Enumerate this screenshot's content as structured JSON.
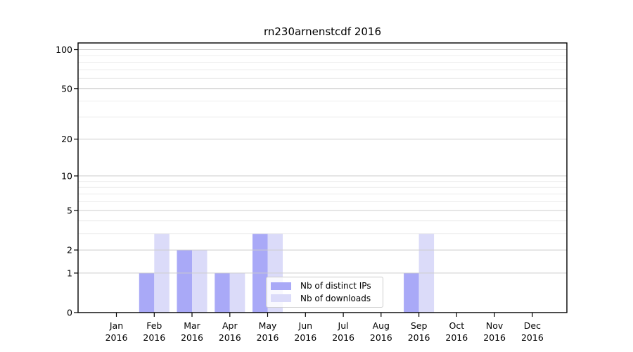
{
  "title": "rn230arnenstcdf 2016",
  "colors": {
    "distinct_ips_bar": "#a9a9f7",
    "downloads_bar": "#dbdbf9",
    "grid_major": "#cccccc",
    "grid_minor": "#e8e8e8",
    "axis": "#000000",
    "background": "#ffffff",
    "legend_border": "#cccccc"
  },
  "chart_data": {
    "type": "bar",
    "title": "rn230arnenstcdf 2016",
    "categories": [
      "Jan 2016",
      "Feb 2016",
      "Mar 2016",
      "Apr 2016",
      "May 2016",
      "Jun 2016",
      "Jul 2016",
      "Aug 2016",
      "Sep 2016",
      "Oct 2016",
      "Nov 2016",
      "Dec 2016"
    ],
    "series": [
      {
        "name": "Nb of distinct IPs",
        "color": "#a9a9f7",
        "values": [
          0,
          1,
          2,
          1,
          3,
          0,
          0,
          0,
          1,
          0,
          0,
          0
        ]
      },
      {
        "name": "Nb of downloads",
        "color": "#dbdbf9",
        "values": [
          0,
          3,
          2,
          1,
          3,
          0,
          0,
          0,
          3,
          0,
          0,
          0
        ]
      }
    ],
    "xlabel": "",
    "ylabel": "",
    "y_scale": "log10(value+1)",
    "y_ticks": [
      0,
      1,
      2,
      5,
      10,
      20,
      50,
      100
    ],
    "y_minor_ticks": [
      3,
      4,
      6,
      7,
      8,
      9,
      30,
      40,
      60,
      70,
      80,
      90
    ],
    "ylim": [
      0,
      110
    ],
    "grid": true,
    "legend_position": "lower center"
  }
}
